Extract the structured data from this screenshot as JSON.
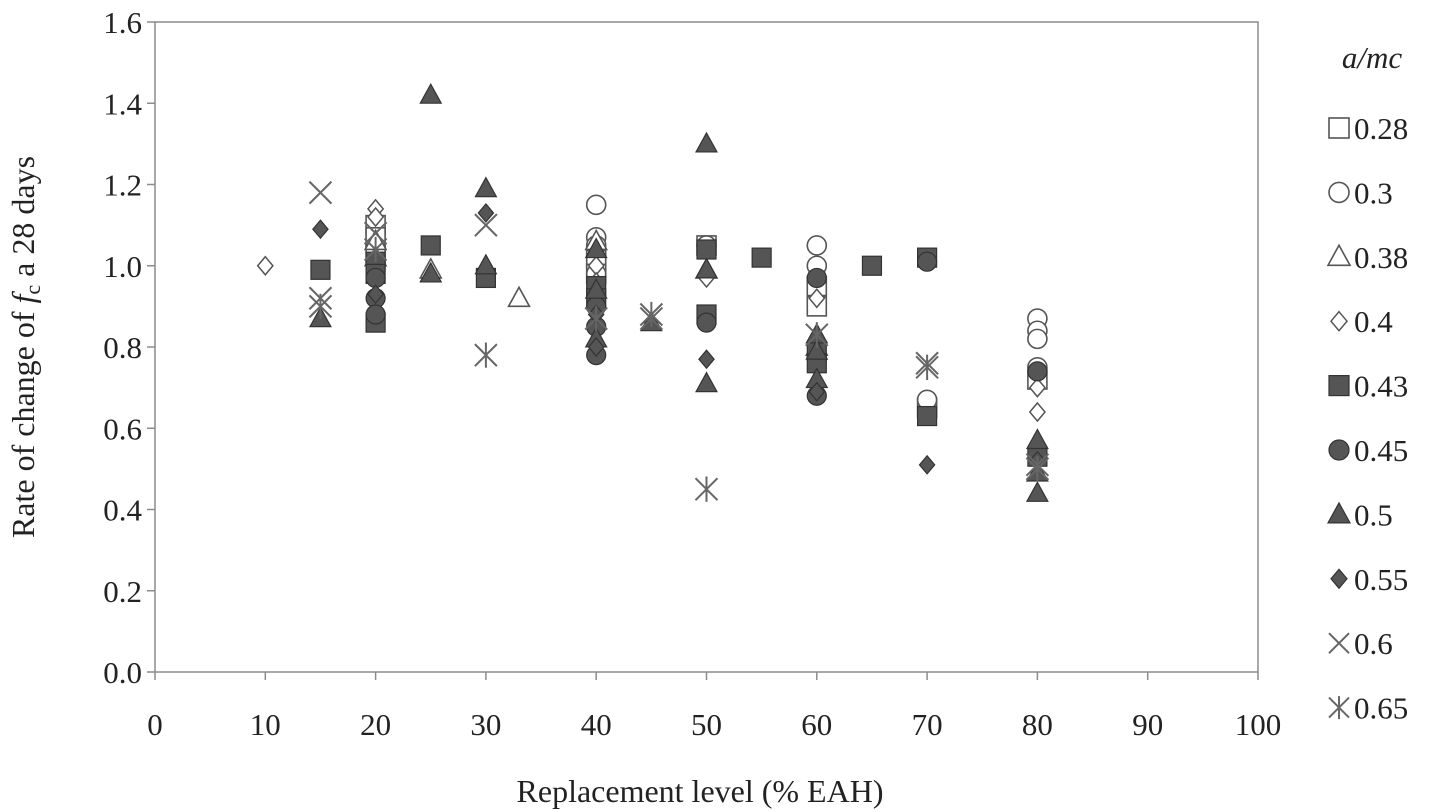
{
  "chart_data": {
    "type": "scatter",
    "xlabel": "Replacement level (% EAH)",
    "ylabel": {
      "prefix": "Rate of change of ",
      "symbol": "f",
      "subscript": "c",
      "suffix": " a 28 days"
    },
    "xlim": [
      0,
      100
    ],
    "ylim": [
      0.0,
      1.6
    ],
    "xticks": [
      "0",
      "10",
      "20",
      "30",
      "40",
      "50",
      "60",
      "70",
      "80",
      "90",
      "100"
    ],
    "yticks": [
      "0.0",
      "0.2",
      "0.4",
      "0.6",
      "0.8",
      "1.0",
      "1.2",
      "1.4",
      "1.6"
    ],
    "grid": false,
    "legend_title": "a/mc",
    "legend_position": "right",
    "series": [
      {
        "name": "0.28",
        "marker": "square-open",
        "points": [
          [
            20,
            1.1
          ],
          [
            20,
            1.07
          ],
          [
            20,
            1.03
          ],
          [
            40,
            1.02
          ],
          [
            40,
            0.98
          ],
          [
            50,
            1.05
          ],
          [
            60,
            0.95
          ],
          [
            60,
            0.9
          ],
          [
            70,
            0.65
          ],
          [
            80,
            0.72
          ]
        ]
      },
      {
        "name": "0.3",
        "marker": "circle-open",
        "points": [
          [
            40,
            1.15
          ],
          [
            40,
            1.07
          ],
          [
            40,
            1.05
          ],
          [
            40,
            0.98
          ],
          [
            50,
            1.05
          ],
          [
            60,
            1.05
          ],
          [
            60,
            1.0
          ],
          [
            70,
            0.67
          ],
          [
            80,
            0.87
          ],
          [
            80,
            0.84
          ],
          [
            80,
            0.82
          ],
          [
            80,
            0.75
          ]
        ]
      },
      {
        "name": "0.38",
        "marker": "triangle-open",
        "points": [
          [
            20,
            1.06
          ],
          [
            20,
            1.02
          ],
          [
            25,
            0.99
          ],
          [
            33,
            0.92
          ],
          [
            40,
            1.06
          ],
          [
            50,
            0.99
          ],
          [
            60,
            0.8
          ]
        ]
      },
      {
        "name": "0.4",
        "marker": "diamond-open",
        "points": [
          [
            10,
            1.0
          ],
          [
            20,
            1.14
          ],
          [
            20,
            1.12
          ],
          [
            40,
            1.0
          ],
          [
            40,
            0.96
          ],
          [
            50,
            0.97
          ],
          [
            60,
            0.92
          ],
          [
            80,
            0.7
          ],
          [
            80,
            0.64
          ]
        ]
      },
      {
        "name": "0.43",
        "marker": "square-filled",
        "points": [
          [
            15,
            0.99
          ],
          [
            20,
            1.01
          ],
          [
            20,
            0.98
          ],
          [
            20,
            0.86
          ],
          [
            25,
            1.05
          ],
          [
            30,
            0.97
          ],
          [
            40,
            0.95
          ],
          [
            40,
            0.92
          ],
          [
            50,
            1.04
          ],
          [
            50,
            0.88
          ],
          [
            55,
            1.02
          ],
          [
            60,
            0.79
          ],
          [
            60,
            0.76
          ],
          [
            65,
            1.0
          ],
          [
            70,
            1.02
          ],
          [
            70,
            0.63
          ],
          [
            80,
            0.53
          ]
        ]
      },
      {
        "name": "0.45",
        "marker": "circle-filled",
        "points": [
          [
            20,
            0.97
          ],
          [
            20,
            0.92
          ],
          [
            20,
            0.88
          ],
          [
            40,
            0.9
          ],
          [
            40,
            0.85
          ],
          [
            40,
            0.78
          ],
          [
            50,
            0.86
          ],
          [
            60,
            0.97
          ],
          [
            60,
            0.68
          ],
          [
            70,
            1.01
          ],
          [
            80,
            0.74
          ]
        ]
      },
      {
        "name": "0.5",
        "marker": "triangle-filled",
        "points": [
          [
            15,
            0.87
          ],
          [
            25,
            1.42
          ],
          [
            25,
            0.98
          ],
          [
            30,
            1.19
          ],
          [
            30,
            1.0
          ],
          [
            40,
            1.04
          ],
          [
            40,
            0.94
          ],
          [
            40,
            0.82
          ],
          [
            45,
            0.86
          ],
          [
            50,
            1.3
          ],
          [
            50,
            0.99
          ],
          [
            50,
            0.71
          ],
          [
            60,
            0.83
          ],
          [
            60,
            0.79
          ],
          [
            60,
            0.72
          ],
          [
            80,
            0.57
          ],
          [
            80,
            0.49
          ],
          [
            80,
            0.44
          ]
        ]
      },
      {
        "name": "0.55",
        "marker": "diamond-filled",
        "points": [
          [
            15,
            1.09
          ],
          [
            20,
            0.93
          ],
          [
            30,
            1.13
          ],
          [
            40,
            0.88
          ],
          [
            40,
            0.8
          ],
          [
            50,
            0.77
          ],
          [
            60,
            0.69
          ],
          [
            70,
            0.51
          ],
          [
            80,
            0.52
          ]
        ]
      },
      {
        "name": "0.6",
        "marker": "x",
        "points": [
          [
            15,
            1.18
          ],
          [
            15,
            0.92
          ],
          [
            20,
            1.08
          ],
          [
            30,
            1.1
          ],
          [
            45,
            0.87
          ],
          [
            70,
            0.76
          ],
          [
            80,
            0.51
          ]
        ]
      },
      {
        "name": "0.65",
        "marker": "asterisk",
        "points": [
          [
            15,
            0.9
          ],
          [
            20,
            1.04
          ],
          [
            30,
            0.78
          ],
          [
            40,
            0.87
          ],
          [
            45,
            0.88
          ],
          [
            50,
            0.45
          ],
          [
            60,
            0.83
          ],
          [
            70,
            0.75
          ],
          [
            80,
            0.5
          ]
        ]
      }
    ]
  }
}
